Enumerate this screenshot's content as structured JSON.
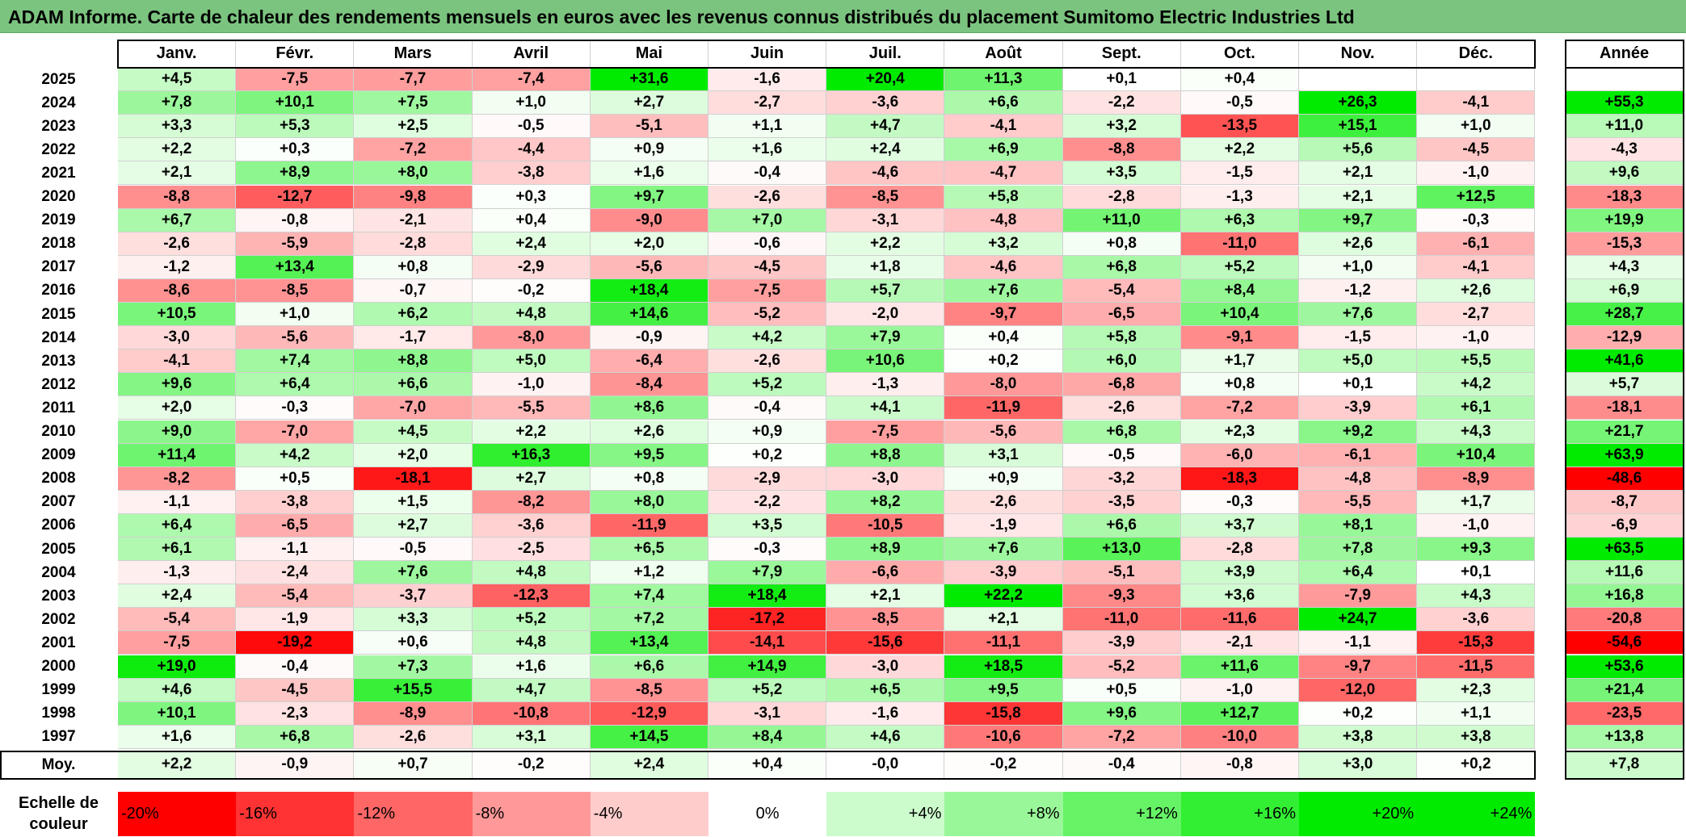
{
  "title": "ADAM Informe. Carte de chaleur des rendements mensuels en euros avec les revenus connus distribués du placement Sumitomo Electric Industries Ltd",
  "colors": {
    "title_bg": "#7bc47f",
    "neg_max": "#ff0000",
    "pos_max": "#00ee00",
    "neutral": "#ffffff"
  },
  "chart_data": {
    "type": "heatmap",
    "months": [
      "Janv.",
      "Févr.",
      "Mars",
      "Avril",
      "Mai",
      "Juin",
      "Juil.",
      "Août",
      "Sept.",
      "Oct.",
      "Nov.",
      "Déc."
    ],
    "year_header": "Année",
    "avg_label": "Moy.",
    "rows": [
      {
        "year": "2025",
        "values": [
          "+4,5",
          "-7,5",
          "-7,7",
          "-7,4",
          "+31,6",
          "-1,6",
          "+20,4",
          "+11,3",
          "+0,1",
          "+0,4",
          "",
          ""
        ],
        "annual": ""
      },
      {
        "year": "2024",
        "values": [
          "+7,8",
          "+10,1",
          "+7,5",
          "+1,0",
          "+2,7",
          "-2,7",
          "-3,6",
          "+6,6",
          "-2,2",
          "-0,5",
          "+26,3",
          "-4,1"
        ],
        "annual": "+55,3"
      },
      {
        "year": "2023",
        "values": [
          "+3,3",
          "+5,3",
          "+2,5",
          "-0,5",
          "-5,1",
          "+1,1",
          "+4,7",
          "-4,1",
          "+3,2",
          "-13,5",
          "+15,1",
          "+1,0"
        ],
        "annual": "+11,0"
      },
      {
        "year": "2022",
        "values": [
          "+2,2",
          "+0,3",
          "-7,2",
          "-4,4",
          "+0,9",
          "+1,6",
          "+2,4",
          "+6,9",
          "-8,8",
          "+2,2",
          "+5,6",
          "-4,5"
        ],
        "annual": "-4,3"
      },
      {
        "year": "2021",
        "values": [
          "+2,1",
          "+8,9",
          "+8,0",
          "-3,8",
          "+1,6",
          "-0,4",
          "-4,6",
          "-4,7",
          "+3,5",
          "-1,5",
          "+2,1",
          "-1,0"
        ],
        "annual": "+9,6"
      },
      {
        "year": "2020",
        "values": [
          "-8,8",
          "-12,7",
          "-9,8",
          "+0,3",
          "+9,7",
          "-2,6",
          "-8,5",
          "+5,8",
          "-2,8",
          "-1,3",
          "+2,1",
          "+12,5"
        ],
        "annual": "-18,3"
      },
      {
        "year": "2019",
        "values": [
          "+6,7",
          "-0,8",
          "-2,1",
          "+0,4",
          "-9,0",
          "+7,0",
          "-3,1",
          "-4,8",
          "+11,0",
          "+6,3",
          "+9,7",
          "-0,3"
        ],
        "annual": "+19,9"
      },
      {
        "year": "2018",
        "values": [
          "-2,6",
          "-5,9",
          "-2,8",
          "+2,4",
          "+2,0",
          "-0,6",
          "+2,2",
          "+3,2",
          "+0,8",
          "-11,0",
          "+2,6",
          "-6,1"
        ],
        "annual": "-15,3"
      },
      {
        "year": "2017",
        "values": [
          "-1,2",
          "+13,4",
          "+0,8",
          "-2,9",
          "-5,6",
          "-4,5",
          "+1,8",
          "-4,6",
          "+6,8",
          "+5,2",
          "+1,0",
          "-4,1"
        ],
        "annual": "+4,3"
      },
      {
        "year": "2016",
        "values": [
          "-8,6",
          "-8,5",
          "-0,7",
          "-0,2",
          "+18,4",
          "-7,5",
          "+5,7",
          "+7,6",
          "-5,4",
          "+8,4",
          "-1,2",
          "+2,6"
        ],
        "annual": "+6,9"
      },
      {
        "year": "2015",
        "values": [
          "+10,5",
          "+1,0",
          "+6,2",
          "+4,8",
          "+14,6",
          "-5,2",
          "-2,0",
          "-9,7",
          "-6,5",
          "+10,4",
          "+7,6",
          "-2,7"
        ],
        "annual": "+28,7"
      },
      {
        "year": "2014",
        "values": [
          "-3,0",
          "-5,6",
          "-1,7",
          "-8,0",
          "-0,9",
          "+4,2",
          "+7,9",
          "+0,4",
          "+5,8",
          "-9,1",
          "-1,5",
          "-1,0"
        ],
        "annual": "-12,9"
      },
      {
        "year": "2013",
        "values": [
          "-4,1",
          "+7,4",
          "+8,8",
          "+5,0",
          "-6,4",
          "-2,6",
          "+10,6",
          "+0,2",
          "+6,0",
          "+1,7",
          "+5,0",
          "+5,5"
        ],
        "annual": "+41,6"
      },
      {
        "year": "2012",
        "values": [
          "+9,6",
          "+6,4",
          "+6,6",
          "-1,0",
          "-8,4",
          "+5,2",
          "-1,3",
          "-8,0",
          "-6,8",
          "+0,8",
          "+0,1",
          "+4,2"
        ],
        "annual": "+5,7"
      },
      {
        "year": "2011",
        "values": [
          "+2,0",
          "-0,3",
          "-7,0",
          "-5,5",
          "+8,6",
          "-0,4",
          "+4,1",
          "-11,9",
          "-2,6",
          "-7,2",
          "-3,9",
          "+6,1"
        ],
        "annual": "-18,1"
      },
      {
        "year": "2010",
        "values": [
          "+9,0",
          "-7,0",
          "+4,5",
          "+2,2",
          "+2,6",
          "+0,9",
          "-7,5",
          "-5,6",
          "+6,8",
          "+2,3",
          "+9,2",
          "+4,3"
        ],
        "annual": "+21,7"
      },
      {
        "year": "2009",
        "values": [
          "+11,4",
          "+4,2",
          "+2,0",
          "+16,3",
          "+9,5",
          "+0,2",
          "+8,8",
          "+3,1",
          "-0,5",
          "-6,0",
          "-6,1",
          "+10,4"
        ],
        "annual": "+63,9"
      },
      {
        "year": "2008",
        "values": [
          "-8,2",
          "+0,5",
          "-18,1",
          "+2,7",
          "+0,8",
          "-2,9",
          "-3,0",
          "+0,9",
          "-3,2",
          "-18,3",
          "-4,8",
          "-8,9"
        ],
        "annual": "-48,6"
      },
      {
        "year": "2007",
        "values": [
          "-1,1",
          "-3,8",
          "+1,5",
          "-8,2",
          "+8,0",
          "-2,2",
          "+8,2",
          "-2,6",
          "-3,5",
          "-0,3",
          "-5,5",
          "+1,7"
        ],
        "annual": "-8,7"
      },
      {
        "year": "2006",
        "values": [
          "+6,4",
          "-6,5",
          "+2,7",
          "-3,6",
          "-11,9",
          "+3,5",
          "-10,5",
          "-1,9",
          "+6,6",
          "+3,7",
          "+8,1",
          "-1,0"
        ],
        "annual": "-6,9"
      },
      {
        "year": "2005",
        "values": [
          "+6,1",
          "-1,1",
          "-0,5",
          "-2,5",
          "+6,5",
          "-0,3",
          "+8,9",
          "+7,6",
          "+13,0",
          "-2,8",
          "+7,8",
          "+9,3"
        ],
        "annual": "+63,5"
      },
      {
        "year": "2004",
        "values": [
          "-1,3",
          "-2,4",
          "+7,6",
          "+4,8",
          "+1,2",
          "+7,9",
          "-6,6",
          "-3,9",
          "-5,1",
          "+3,9",
          "+6,4",
          "+0,1"
        ],
        "annual": "+11,6"
      },
      {
        "year": "2003",
        "values": [
          "+2,4",
          "-5,4",
          "-3,7",
          "-12,3",
          "+7,4",
          "+18,4",
          "+2,1",
          "+22,2",
          "-9,3",
          "+3,6",
          "-7,9",
          "+4,3"
        ],
        "annual": "+16,8"
      },
      {
        "year": "2002",
        "values": [
          "-5,4",
          "-1,9",
          "+3,3",
          "+5,2",
          "+7,2",
          "-17,2",
          "-8,5",
          "+2,1",
          "-11,0",
          "-11,6",
          "+24,7",
          "-3,6"
        ],
        "annual": "-20,8"
      },
      {
        "year": "2001",
        "values": [
          "-7,5",
          "-19,2",
          "+0,6",
          "+4,8",
          "+13,4",
          "-14,1",
          "-15,6",
          "-11,1",
          "-3,9",
          "-2,1",
          "-1,1",
          "-15,3"
        ],
        "annual": "-54,6"
      },
      {
        "year": "2000",
        "values": [
          "+19,0",
          "-0,4",
          "+7,3",
          "+1,6",
          "+6,6",
          "+14,9",
          "-3,0",
          "+18,5",
          "-5,2",
          "+11,6",
          "-9,7",
          "-11,5"
        ],
        "annual": "+53,6"
      },
      {
        "year": "1999",
        "values": [
          "+4,6",
          "-4,5",
          "+15,5",
          "+4,7",
          "-8,5",
          "+5,2",
          "+6,5",
          "+9,5",
          "+0,5",
          "-1,0",
          "-12,0",
          "+2,3"
        ],
        "annual": "+21,4"
      },
      {
        "year": "1998",
        "values": [
          "+10,1",
          "-2,3",
          "-8,9",
          "-10,8",
          "-12,9",
          "-3,1",
          "-1,6",
          "-15,8",
          "+9,6",
          "+12,7",
          "+0,2",
          "+1,1"
        ],
        "annual": "-23,5"
      },
      {
        "year": "1997",
        "values": [
          "+1,6",
          "+6,8",
          "-2,6",
          "+3,1",
          "+14,5",
          "+8,4",
          "+4,6",
          "-10,6",
          "-7,2",
          "-10,0",
          "+3,8",
          "+3,8"
        ],
        "annual": "+13,8"
      }
    ],
    "averages": [
      "+2,2",
      "-0,9",
      "+0,7",
      "-0,2",
      "+2,4",
      "+0,4",
      "-0,0",
      "-0,2",
      "-0,4",
      "-0,8",
      "+3,0",
      "+0,2"
    ],
    "average_annual": "+7,8",
    "scale_label": "Echelle de couleur",
    "scale": [
      "-20%",
      "-16%",
      "-12%",
      "-8%",
      "-4%",
      "0%",
      "+4%",
      "+8%",
      "+12%",
      "+16%",
      "+20%",
      "+24%"
    ]
  }
}
